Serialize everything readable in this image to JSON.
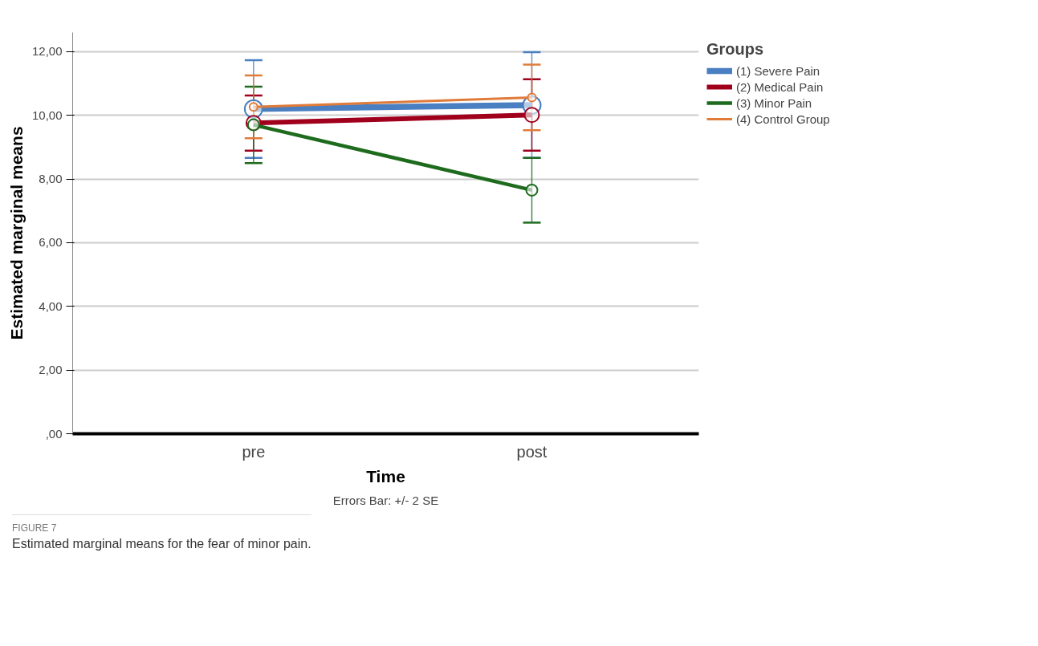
{
  "chart_data": {
    "type": "line",
    "xlabel": "Time",
    "ylabel": "Estimated marginal means",
    "legend_title": "Groups",
    "categories": [
      "pre",
      "post"
    ],
    "series": [
      {
        "name": "(1) Severe Pain",
        "color": "#4a7fc1",
        "values": [
          10.2,
          10.32
        ],
        "errors": [
          [
            8.66,
            11.73
          ],
          [
            8.66,
            11.98
          ]
        ]
      },
      {
        "name": "(2) Medical Pain",
        "color": "#a0001c",
        "values": [
          9.76,
          10.01
        ],
        "errors": [
          [
            8.89,
            10.62
          ],
          [
            8.89,
            11.13
          ]
        ]
      },
      {
        "name": "(3) Minor Pain",
        "color": "#1e6b1e",
        "values": [
          9.7,
          7.65
        ],
        "errors": [
          [
            8.5,
            10.9
          ],
          [
            6.63,
            8.66
          ]
        ]
      },
      {
        "name": "(4) Control Group",
        "color": "#e07b39",
        "values": [
          10.26,
          10.56
        ],
        "errors": [
          [
            9.28,
            11.25
          ],
          [
            9.53,
            11.59
          ]
        ]
      }
    ],
    "ylim": [
      0,
      12.6
    ],
    "yticks": [
      {
        "value": 0,
        "label": ",00"
      },
      {
        "value": 2,
        "label": "2,00"
      },
      {
        "value": 4,
        "label": "4,00"
      },
      {
        "value": 6,
        "label": "6,00"
      },
      {
        "value": 8,
        "label": "8,00"
      },
      {
        "value": 10,
        "label": "10,00"
      },
      {
        "value": 12,
        "label": "12,00"
      }
    ],
    "grid": "y",
    "legend": "top right",
    "marker": "circle",
    "line_style": "solid",
    "annotations": [
      "Errors Bar: +/- 2 SE",
      "FIGURE 7",
      "Estimated marginal means for the fear of minor pain."
    ]
  }
}
